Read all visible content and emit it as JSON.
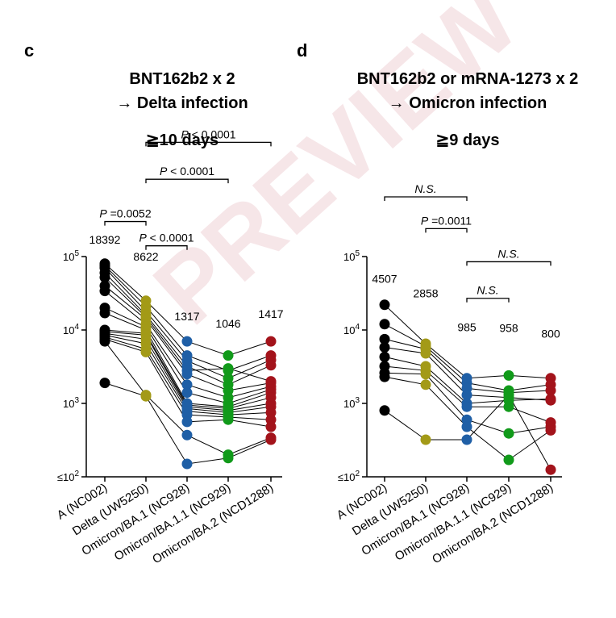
{
  "watermark": "PREVIEW",
  "colors": {
    "A (NC002)": "#000000",
    "Delta (UW5250)": "#a39a17",
    "Omicron/BA.1 (NC928)": "#1f5fa6",
    "Omicron/BA.1.1 (NC929)": "#119a1a",
    "Omicron/BA.2 (NCD1288)": "#a3131b"
  },
  "chart_data": [
    {
      "type": "scatter",
      "panel_label": "c",
      "title": "BNT162b2 x 2",
      "subtitle": "→ Delta infection",
      "time_label": "≧10 days",
      "y_scale": "log",
      "ylim": [
        100,
        100000
      ],
      "y_ticks": [
        {
          "value": 100000,
          "label_base": "10",
          "label_exp": "5",
          "prefix": ""
        },
        {
          "value": 10000,
          "label_base": "10",
          "label_exp": "4",
          "prefix": ""
        },
        {
          "value": 1000,
          "label_base": "10",
          "label_exp": "3",
          "prefix": ""
        },
        {
          "value": 100,
          "label_base": "10",
          "label_exp": "2",
          "prefix": "≤"
        }
      ],
      "categories": [
        "A (NC002)",
        "Delta (UW5250)",
        "Omicron/BA.1 (NC928)",
        "Omicron/BA.1.1 (NC929)",
        "Omicron/BA.2 (NCD1288)"
      ],
      "geomean_labels": [
        "18392",
        "8622",
        "1317",
        "1046",
        "1417"
      ],
      "geomean_label_values": [
        150000,
        88000,
        13500,
        10800,
        14700
      ],
      "subjects": [
        [
          80000,
          25000,
          7000,
          4500,
          7000
        ],
        [
          75000,
          21000,
          4500,
          2800,
          4500
        ],
        [
          70000,
          18000,
          3800,
          2200,
          3900
        ],
        [
          60000,
          16000,
          3200,
          1800,
          3300
        ],
        [
          52000,
          15000,
          2800,
          3000,
          2000
        ],
        [
          40000,
          14000,
          2500,
          1500,
          1900
        ],
        [
          34000,
          12000,
          1800,
          1200,
          1700
        ],
        [
          20000,
          11000,
          1400,
          1000,
          1550
        ],
        [
          17000,
          10000,
          1000,
          900,
          1400
        ],
        [
          10000,
          9000,
          950,
          850,
          1200
        ],
        [
          9500,
          8500,
          900,
          800,
          1000
        ],
        [
          9000,
          7500,
          850,
          750,
          900
        ],
        [
          8500,
          6500,
          780,
          700,
          750
        ],
        [
          8000,
          5500,
          700,
          650,
          600
        ],
        [
          7500,
          5000,
          560,
          600,
          480
        ],
        [
          7000,
          1300,
          370,
          200,
          340
        ],
        [
          1900,
          1250,
          150,
          180,
          320
        ]
      ],
      "comparisons": [
        {
          "from": 0,
          "to": 1,
          "value": 300000,
          "label": "P =0.0052"
        },
        {
          "from": 1,
          "to": 2,
          "value": 140000,
          "label": "P < 0.0001"
        },
        {
          "from": 1,
          "to": 3,
          "value": 1130000,
          "label": "P < 0.0001"
        },
        {
          "from": 1,
          "to": 4,
          "value": 3600000,
          "label": "P < 0.0001"
        }
      ]
    },
    {
      "type": "scatter",
      "panel_label": "d",
      "title": "BNT162b2 or mRNA-1273 x 2",
      "subtitle": "→ Omicron infection",
      "time_label": "≧9 days",
      "y_scale": "log",
      "ylim": [
        100,
        100000
      ],
      "y_ticks": [
        {
          "value": 100000,
          "label_base": "10",
          "label_exp": "5",
          "prefix": ""
        },
        {
          "value": 10000,
          "label_base": "10",
          "label_exp": "4",
          "prefix": ""
        },
        {
          "value": 1000,
          "label_base": "10",
          "label_exp": "3",
          "prefix": ""
        },
        {
          "value": 100,
          "label_base": "10",
          "label_exp": "2",
          "prefix": "≤"
        }
      ],
      "categories": [
        "A (NC002)",
        "Delta (UW5250)",
        "Omicron/BA.1 (NC928)",
        "Omicron/BA.1.1 (NC929)",
        "Omicron/BA.2 (NCD1288)"
      ],
      "geomean_labels": [
        "4507",
        "2858",
        "985",
        "958",
        "800"
      ],
      "geomean_label_values": [
        44000,
        28000,
        9600,
        9400,
        7900
      ],
      "subjects": [
        [
          22000,
          6500,
          2200,
          2400,
          2200
        ],
        [
          12000,
          6000,
          1900,
          1500,
          1800
        ],
        [
          7500,
          5500,
          1600,
          1400,
          1500
        ],
        [
          5800,
          4800,
          1300,
          1200,
          1100
        ],
        [
          4300,
          3200,
          1000,
          1100,
          1150
        ],
        [
          3200,
          2800,
          900,
          900,
          550
        ],
        [
          2600,
          2500,
          600,
          390,
          480
        ],
        [
          2300,
          1800,
          480,
          170,
          430
        ],
        [
          800,
          320,
          320,
          1300,
          125
        ]
      ],
      "comparisons": [
        {
          "from": 0,
          "to": 2,
          "value": 650000,
          "label": "N.S."
        },
        {
          "from": 1,
          "to": 2,
          "value": 240000,
          "label": "P =0.0011"
        },
        {
          "from": 2,
          "to": 4,
          "value": 85000,
          "label": "N.S."
        },
        {
          "from": 2,
          "to": 3,
          "value": 27000,
          "label": "N.S."
        }
      ]
    }
  ]
}
